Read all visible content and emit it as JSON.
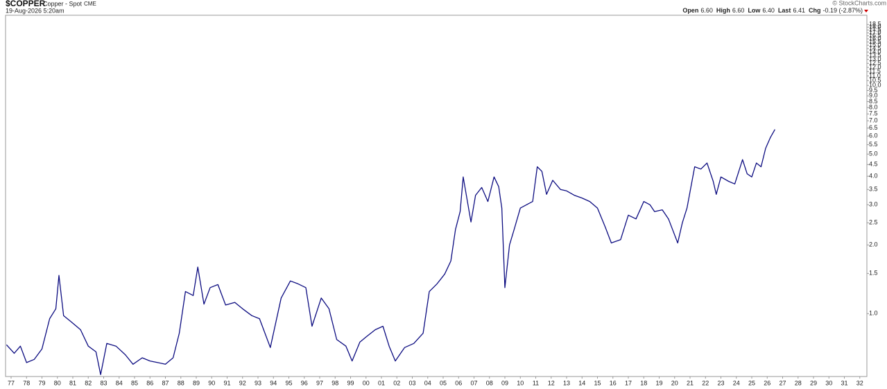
{
  "chart_data": {
    "type": "line",
    "title": "$COPPER",
    "subtitle": "Copper - Spot",
    "exchange": "CME",
    "date": "19-Aug-2026 5:20am",
    "credit": "© StockCharts.com",
    "quote": [
      {
        "label": "Open",
        "value": "6.60"
      },
      {
        "label": "High",
        "value": "6.60"
      },
      {
        "label": "Low",
        "value": "6.40"
      },
      {
        "label": "Last",
        "value": "6.41"
      },
      {
        "label": "Chg",
        "value": "-0.19 (-2.87%)"
      }
    ],
    "color": "#0b0b80",
    "log_scale": true,
    "x": [
      1976.7,
      1977.2,
      1977.6,
      1978.0,
      1978.5,
      1979.0,
      1979.5,
      1979.9,
      1980.1,
      1980.4,
      1980.9,
      1981.5,
      1982.0,
      1982.5,
      1982.8,
      1983.2,
      1983.8,
      1984.4,
      1984.9,
      1985.5,
      1986.0,
      1986.5,
      1987.0,
      1987.5,
      1987.9,
      1988.3,
      1988.8,
      1989.1,
      1989.5,
      1989.9,
      1990.4,
      1990.9,
      1991.5,
      1992.0,
      1992.6,
      1993.1,
      1993.8,
      1994.5,
      1995.1,
      1995.6,
      1996.1,
      1996.5,
      1997.1,
      1997.6,
      1998.1,
      1998.7,
      1999.1,
      1999.6,
      2000.0,
      2000.6,
      2001.1,
      2001.5,
      2001.9,
      2002.5,
      2003.1,
      2003.7,
      2004.1,
      2004.6,
      2005.1,
      2005.5,
      2005.8,
      2006.1,
      2006.3,
      2006.8,
      2007.1,
      2007.5,
      2007.9,
      2008.3,
      2008.6,
      2008.8,
      2009.0,
      2009.3,
      2009.6,
      2010.0,
      2010.4,
      2010.8,
      2011.1,
      2011.4,
      2011.7,
      2012.1,
      2012.6,
      2013.0,
      2013.5,
      2014.0,
      2014.5,
      2015.0,
      2015.5,
      2015.9,
      2016.5,
      2017.0,
      2017.5,
      2018.0,
      2018.4,
      2018.7,
      2019.2,
      2019.6,
      2020.2,
      2020.5,
      2020.8,
      2021.3,
      2021.7,
      2022.1,
      2022.5,
      2022.7,
      2023.0,
      2023.5,
      2023.9,
      2024.4,
      2024.7,
      2025.0,
      2025.3,
      2025.6,
      2025.9,
      2026.2,
      2026.5
    ],
    "values": [
      0.73,
      0.67,
      0.72,
      0.61,
      0.63,
      0.7,
      0.95,
      1.05,
      1.47,
      0.98,
      0.92,
      0.85,
      0.72,
      0.68,
      0.54,
      0.74,
      0.72,
      0.66,
      0.6,
      0.64,
      0.62,
      0.61,
      0.6,
      0.64,
      0.82,
      1.25,
      1.2,
      1.6,
      1.1,
      1.3,
      1.34,
      1.09,
      1.12,
      1.05,
      0.98,
      0.95,
      0.71,
      1.17,
      1.39,
      1.35,
      1.3,
      0.88,
      1.17,
      1.05,
      0.77,
      0.72,
      0.62,
      0.75,
      0.79,
      0.85,
      0.88,
      0.72,
      0.62,
      0.71,
      0.74,
      0.82,
      1.25,
      1.35,
      1.49,
      1.7,
      2.34,
      2.8,
      3.97,
      2.52,
      3.3,
      3.57,
      3.1,
      3.97,
      3.6,
      2.9,
      1.3,
      2.0,
      2.34,
      2.9,
      3.0,
      3.1,
      4.4,
      4.2,
      3.33,
      3.84,
      3.5,
      3.45,
      3.3,
      3.21,
      3.1,
      2.9,
      2.4,
      2.04,
      2.11,
      2.7,
      2.6,
      3.1,
      3.0,
      2.8,
      2.85,
      2.6,
      2.04,
      2.5,
      2.9,
      4.4,
      4.3,
      4.57,
      3.8,
      3.33,
      3.97,
      3.8,
      3.7,
      4.73,
      4.1,
      3.97,
      4.57,
      4.4,
      5.3,
      5.9,
      6.41
    ],
    "xlim": [
      1976.64,
      2032.46
    ],
    "ylim": [
      0.53,
      20.3
    ],
    "xticks": [
      {
        "value": 1977,
        "label": "77"
      },
      {
        "value": 1978,
        "label": "78"
      },
      {
        "value": 1979,
        "label": "79"
      },
      {
        "value": 1980,
        "label": "80"
      },
      {
        "value": 1981,
        "label": "81"
      },
      {
        "value": 1982,
        "label": "82"
      },
      {
        "value": 1983,
        "label": "83"
      },
      {
        "value": 1984,
        "label": "84"
      },
      {
        "value": 1985,
        "label": "85"
      },
      {
        "value": 1986,
        "label": "86"
      },
      {
        "value": 1987,
        "label": "87"
      },
      {
        "value": 1988,
        "label": "88"
      },
      {
        "value": 1989,
        "label": "89"
      },
      {
        "value": 1990,
        "label": "90"
      },
      {
        "value": 1991,
        "label": "91"
      },
      {
        "value": 1992,
        "label": "92"
      },
      {
        "value": 1993,
        "label": "93"
      },
      {
        "value": 1994,
        "label": "94"
      },
      {
        "value": 1995,
        "label": "95"
      },
      {
        "value": 1996,
        "label": "96"
      },
      {
        "value": 1997,
        "label": "97"
      },
      {
        "value": 1998,
        "label": "98"
      },
      {
        "value": 1999,
        "label": "99"
      },
      {
        "value": 2000,
        "label": "00"
      },
      {
        "value": 2001,
        "label": "01"
      },
      {
        "value": 2002,
        "label": "02"
      },
      {
        "value": 2003,
        "label": "03"
      },
      {
        "value": 2004,
        "label": "04"
      },
      {
        "value": 2005,
        "label": "05"
      },
      {
        "value": 2006,
        "label": "06"
      },
      {
        "value": 2007,
        "label": "07"
      },
      {
        "value": 2008,
        "label": "08"
      },
      {
        "value": 2009,
        "label": "09"
      },
      {
        "value": 2010,
        "label": "10"
      },
      {
        "value": 2011,
        "label": "11"
      },
      {
        "value": 2012,
        "label": "12"
      },
      {
        "value": 2013,
        "label": "13"
      },
      {
        "value": 2014,
        "label": "14"
      },
      {
        "value": 2015,
        "label": "15"
      },
      {
        "value": 2016,
        "label": "16"
      },
      {
        "value": 2017,
        "label": "17"
      },
      {
        "value": 2018,
        "label": "18"
      },
      {
        "value": 2019,
        "label": "19"
      },
      {
        "value": 2020,
        "label": "20"
      },
      {
        "value": 2021,
        "label": "21"
      },
      {
        "value": 2022,
        "label": "22"
      },
      {
        "value": 2023,
        "label": "23"
      },
      {
        "value": 2024,
        "label": "24"
      },
      {
        "value": 2025,
        "label": "25"
      },
      {
        "value": 2026,
        "label": "26"
      },
      {
        "value": 2027,
        "label": "27"
      },
      {
        "value": 2028,
        "label": "28"
      },
      {
        "value": 2029,
        "label": "29"
      },
      {
        "value": 2030,
        "label": "30"
      },
      {
        "value": 2031,
        "label": "31"
      },
      {
        "value": 2032,
        "label": "32"
      }
    ],
    "yticks": [
      {
        "value": 1,
        "label": "1.0"
      },
      1.5,
      {
        "value": 2,
        "label": "2.0"
      },
      2.5,
      {
        "value": 3,
        "label": "3.0"
      },
      3.5,
      {
        "value": 4,
        "label": "4.0"
      },
      4.5,
      {
        "value": 5,
        "label": "5.0"
      },
      5.5,
      {
        "value": 6,
        "label": "6.0"
      },
      6.5,
      {
        "value": 7,
        "label": "7.0"
      },
      7.5,
      {
        "value": 8,
        "label": "8.0"
      },
      8.5,
      {
        "value": 9,
        "label": "9.0"
      },
      9.5,
      {
        "value": 10,
        "label": "10.0"
      },
      10.5,
      {
        "value": 11,
        "label": "11.0"
      },
      11.5,
      {
        "value": 12,
        "label": "12.0"
      },
      12.5,
      {
        "value": 13,
        "label": "13.0"
      },
      13.5,
      {
        "value": 14,
        "label": "14.0"
      },
      14.5,
      {
        "value": 15,
        "label": "15.0"
      },
      15.5,
      {
        "value": 16,
        "label": "16.0"
      },
      16.5,
      {
        "value": 17,
        "label": "17.0"
      },
      17.5,
      {
        "value": 18,
        "label": "18.0"
      },
      18.5
    ]
  }
}
